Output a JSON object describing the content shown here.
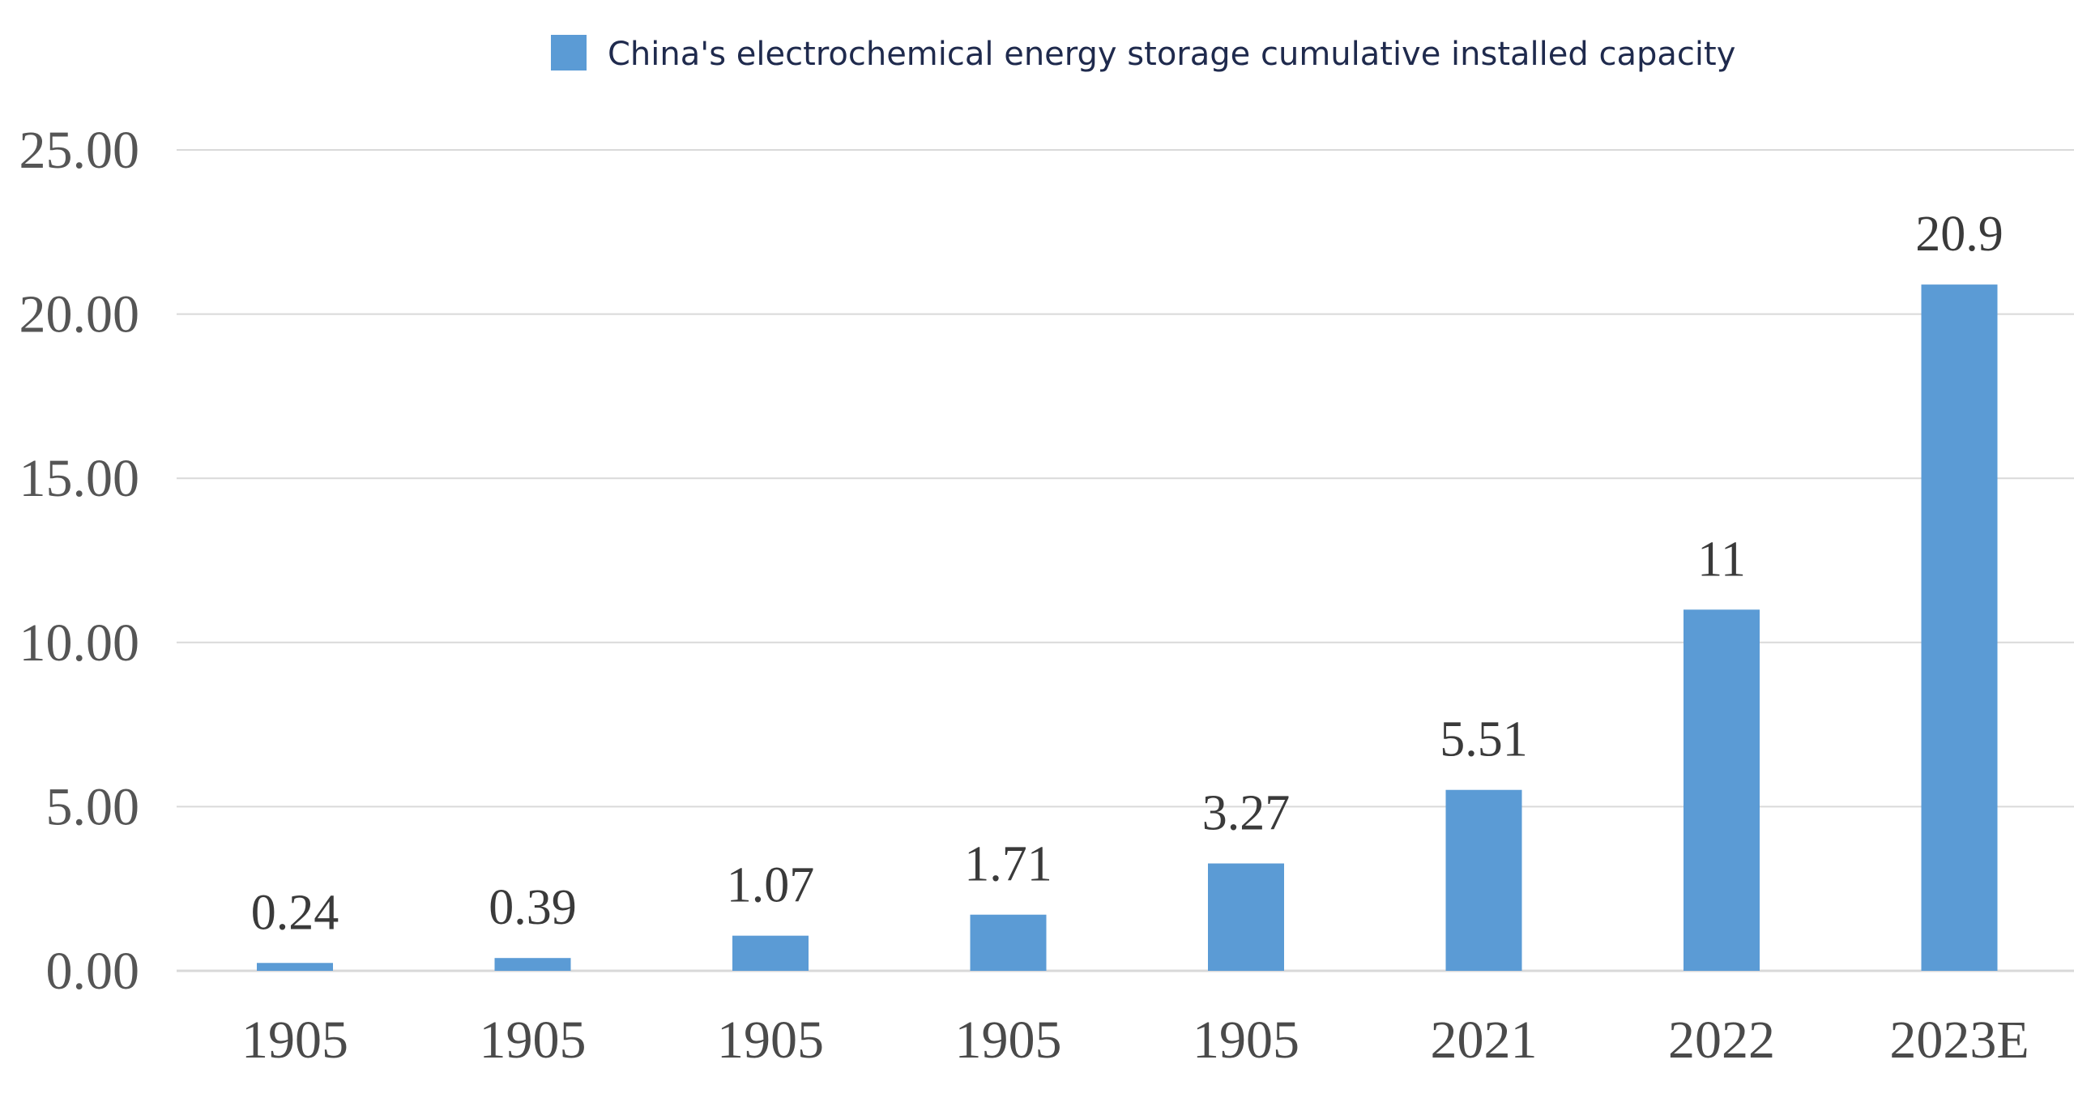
{
  "chart_data": {
    "type": "bar",
    "title": "",
    "xlabel": "",
    "ylabel": "",
    "categories": [
      "1905",
      "1905",
      "1905",
      "1905",
      "1905",
      "2021",
      "2022",
      "2023E"
    ],
    "series": [
      {
        "name": "China's electrochemical energy storage cumulative installed capacity",
        "values": [
          0.24,
          0.39,
          1.07,
          1.71,
          3.27,
          5.51,
          11,
          20.9
        ],
        "labels": [
          "0.24",
          "0.39",
          "1.07",
          "1.71",
          "3.27",
          "5.51",
          "11",
          "20.9"
        ],
        "color": "#5b9bd5"
      }
    ],
    "ylim": [
      0,
      25
    ],
    "yticks": [
      0,
      5,
      10,
      15,
      20,
      25
    ],
    "ytick_labels": [
      "0.00",
      "5.00",
      "10.00",
      "15.00",
      "20.00",
      "25.00"
    ],
    "grid": true,
    "gridline_color": "#d9d9d9",
    "legend_position": "top-center",
    "legend": [
      "China's electrochemical energy storage cumulative installed capacity"
    ]
  }
}
